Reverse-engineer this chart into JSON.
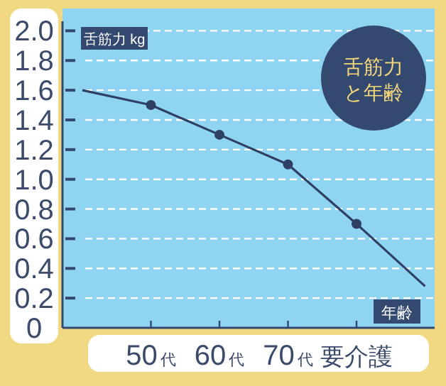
{
  "chart_data": {
    "type": "line",
    "title": "舌筋力と年齢",
    "ylabel": "舌筋力 kg",
    "xlabel": "年齢",
    "categories": [
      null,
      "50代",
      "60代",
      "70代",
      "要介護",
      null
    ],
    "series": [
      {
        "color": "#2e4064",
        "marker": "none",
        "values": [
          1.6,
          1.5,
          1.3,
          1.1,
          0.7,
          0.28
        ]
      },
      {
        "type": "scatter",
        "color": "#2e4064",
        "marker": "circle",
        "values": [
          null,
          1.5,
          1.3,
          1.1,
          0.7,
          null
        ]
      }
    ],
    "ylim": [
      0,
      2.15
    ],
    "yticks": [
      0,
      0.2,
      0.4,
      0.6,
      0.8,
      {
        "value": 1,
        "label": "1.0"
      },
      1.2,
      1.4,
      1.6,
      1.8,
      {
        "value": 2,
        "label": "2.0"
      }
    ],
    "grid": "y"
  }
}
